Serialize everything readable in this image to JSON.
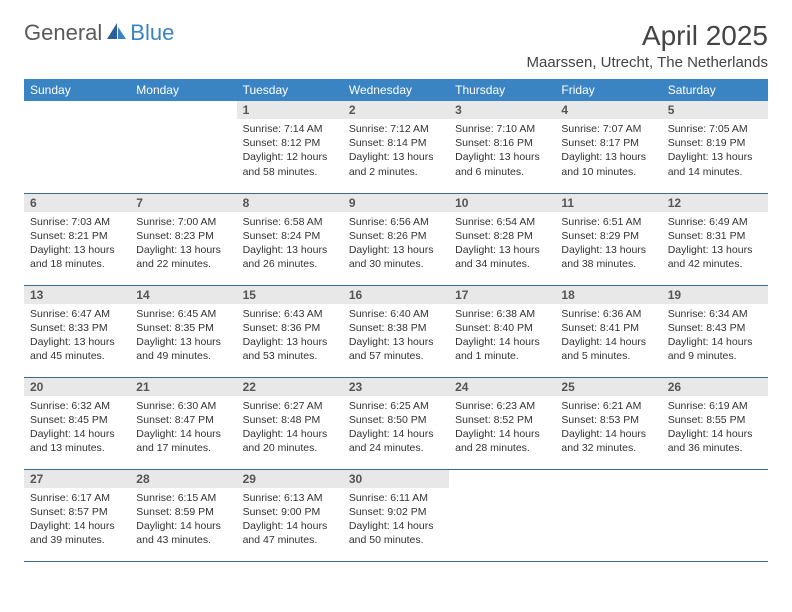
{
  "brand": {
    "part1": "General",
    "part2": "Blue"
  },
  "title": "April 2025",
  "location": "Maarssen, Utrecht, The Netherlands",
  "colors": {
    "header_bg": "#3b84c4",
    "header_text": "#ffffff",
    "daynum_bg": "#e8e8e8",
    "row_border": "#3b6a93",
    "brand_gray": "#5a5a5a",
    "brand_blue": "#3b84c4"
  },
  "dayHeaders": [
    "Sunday",
    "Monday",
    "Tuesday",
    "Wednesday",
    "Thursday",
    "Friday",
    "Saturday"
  ],
  "weeks": [
    [
      {
        "empty": true
      },
      {
        "empty": true
      },
      {
        "num": "1",
        "sunrise": "Sunrise: 7:14 AM",
        "sunset": "Sunset: 8:12 PM",
        "daylight": "Daylight: 12 hours and 58 minutes."
      },
      {
        "num": "2",
        "sunrise": "Sunrise: 7:12 AM",
        "sunset": "Sunset: 8:14 PM",
        "daylight": "Daylight: 13 hours and 2 minutes."
      },
      {
        "num": "3",
        "sunrise": "Sunrise: 7:10 AM",
        "sunset": "Sunset: 8:16 PM",
        "daylight": "Daylight: 13 hours and 6 minutes."
      },
      {
        "num": "4",
        "sunrise": "Sunrise: 7:07 AM",
        "sunset": "Sunset: 8:17 PM",
        "daylight": "Daylight: 13 hours and 10 minutes."
      },
      {
        "num": "5",
        "sunrise": "Sunrise: 7:05 AM",
        "sunset": "Sunset: 8:19 PM",
        "daylight": "Daylight: 13 hours and 14 minutes."
      }
    ],
    [
      {
        "num": "6",
        "sunrise": "Sunrise: 7:03 AM",
        "sunset": "Sunset: 8:21 PM",
        "daylight": "Daylight: 13 hours and 18 minutes."
      },
      {
        "num": "7",
        "sunrise": "Sunrise: 7:00 AM",
        "sunset": "Sunset: 8:23 PM",
        "daylight": "Daylight: 13 hours and 22 minutes."
      },
      {
        "num": "8",
        "sunrise": "Sunrise: 6:58 AM",
        "sunset": "Sunset: 8:24 PM",
        "daylight": "Daylight: 13 hours and 26 minutes."
      },
      {
        "num": "9",
        "sunrise": "Sunrise: 6:56 AM",
        "sunset": "Sunset: 8:26 PM",
        "daylight": "Daylight: 13 hours and 30 minutes."
      },
      {
        "num": "10",
        "sunrise": "Sunrise: 6:54 AM",
        "sunset": "Sunset: 8:28 PM",
        "daylight": "Daylight: 13 hours and 34 minutes."
      },
      {
        "num": "11",
        "sunrise": "Sunrise: 6:51 AM",
        "sunset": "Sunset: 8:29 PM",
        "daylight": "Daylight: 13 hours and 38 minutes."
      },
      {
        "num": "12",
        "sunrise": "Sunrise: 6:49 AM",
        "sunset": "Sunset: 8:31 PM",
        "daylight": "Daylight: 13 hours and 42 minutes."
      }
    ],
    [
      {
        "num": "13",
        "sunrise": "Sunrise: 6:47 AM",
        "sunset": "Sunset: 8:33 PM",
        "daylight": "Daylight: 13 hours and 45 minutes."
      },
      {
        "num": "14",
        "sunrise": "Sunrise: 6:45 AM",
        "sunset": "Sunset: 8:35 PM",
        "daylight": "Daylight: 13 hours and 49 minutes."
      },
      {
        "num": "15",
        "sunrise": "Sunrise: 6:43 AM",
        "sunset": "Sunset: 8:36 PM",
        "daylight": "Daylight: 13 hours and 53 minutes."
      },
      {
        "num": "16",
        "sunrise": "Sunrise: 6:40 AM",
        "sunset": "Sunset: 8:38 PM",
        "daylight": "Daylight: 13 hours and 57 minutes."
      },
      {
        "num": "17",
        "sunrise": "Sunrise: 6:38 AM",
        "sunset": "Sunset: 8:40 PM",
        "daylight": "Daylight: 14 hours and 1 minute."
      },
      {
        "num": "18",
        "sunrise": "Sunrise: 6:36 AM",
        "sunset": "Sunset: 8:41 PM",
        "daylight": "Daylight: 14 hours and 5 minutes."
      },
      {
        "num": "19",
        "sunrise": "Sunrise: 6:34 AM",
        "sunset": "Sunset: 8:43 PM",
        "daylight": "Daylight: 14 hours and 9 minutes."
      }
    ],
    [
      {
        "num": "20",
        "sunrise": "Sunrise: 6:32 AM",
        "sunset": "Sunset: 8:45 PM",
        "daylight": "Daylight: 14 hours and 13 minutes."
      },
      {
        "num": "21",
        "sunrise": "Sunrise: 6:30 AM",
        "sunset": "Sunset: 8:47 PM",
        "daylight": "Daylight: 14 hours and 17 minutes."
      },
      {
        "num": "22",
        "sunrise": "Sunrise: 6:27 AM",
        "sunset": "Sunset: 8:48 PM",
        "daylight": "Daylight: 14 hours and 20 minutes."
      },
      {
        "num": "23",
        "sunrise": "Sunrise: 6:25 AM",
        "sunset": "Sunset: 8:50 PM",
        "daylight": "Daylight: 14 hours and 24 minutes."
      },
      {
        "num": "24",
        "sunrise": "Sunrise: 6:23 AM",
        "sunset": "Sunset: 8:52 PM",
        "daylight": "Daylight: 14 hours and 28 minutes."
      },
      {
        "num": "25",
        "sunrise": "Sunrise: 6:21 AM",
        "sunset": "Sunset: 8:53 PM",
        "daylight": "Daylight: 14 hours and 32 minutes."
      },
      {
        "num": "26",
        "sunrise": "Sunrise: 6:19 AM",
        "sunset": "Sunset: 8:55 PM",
        "daylight": "Daylight: 14 hours and 36 minutes."
      }
    ],
    [
      {
        "num": "27",
        "sunrise": "Sunrise: 6:17 AM",
        "sunset": "Sunset: 8:57 PM",
        "daylight": "Daylight: 14 hours and 39 minutes."
      },
      {
        "num": "28",
        "sunrise": "Sunrise: 6:15 AM",
        "sunset": "Sunset: 8:59 PM",
        "daylight": "Daylight: 14 hours and 43 minutes."
      },
      {
        "num": "29",
        "sunrise": "Sunrise: 6:13 AM",
        "sunset": "Sunset: 9:00 PM",
        "daylight": "Daylight: 14 hours and 47 minutes."
      },
      {
        "num": "30",
        "sunrise": "Sunrise: 6:11 AM",
        "sunset": "Sunset: 9:02 PM",
        "daylight": "Daylight: 14 hours and 50 minutes."
      },
      {
        "empty": true
      },
      {
        "empty": true
      },
      {
        "empty": true
      }
    ]
  ]
}
